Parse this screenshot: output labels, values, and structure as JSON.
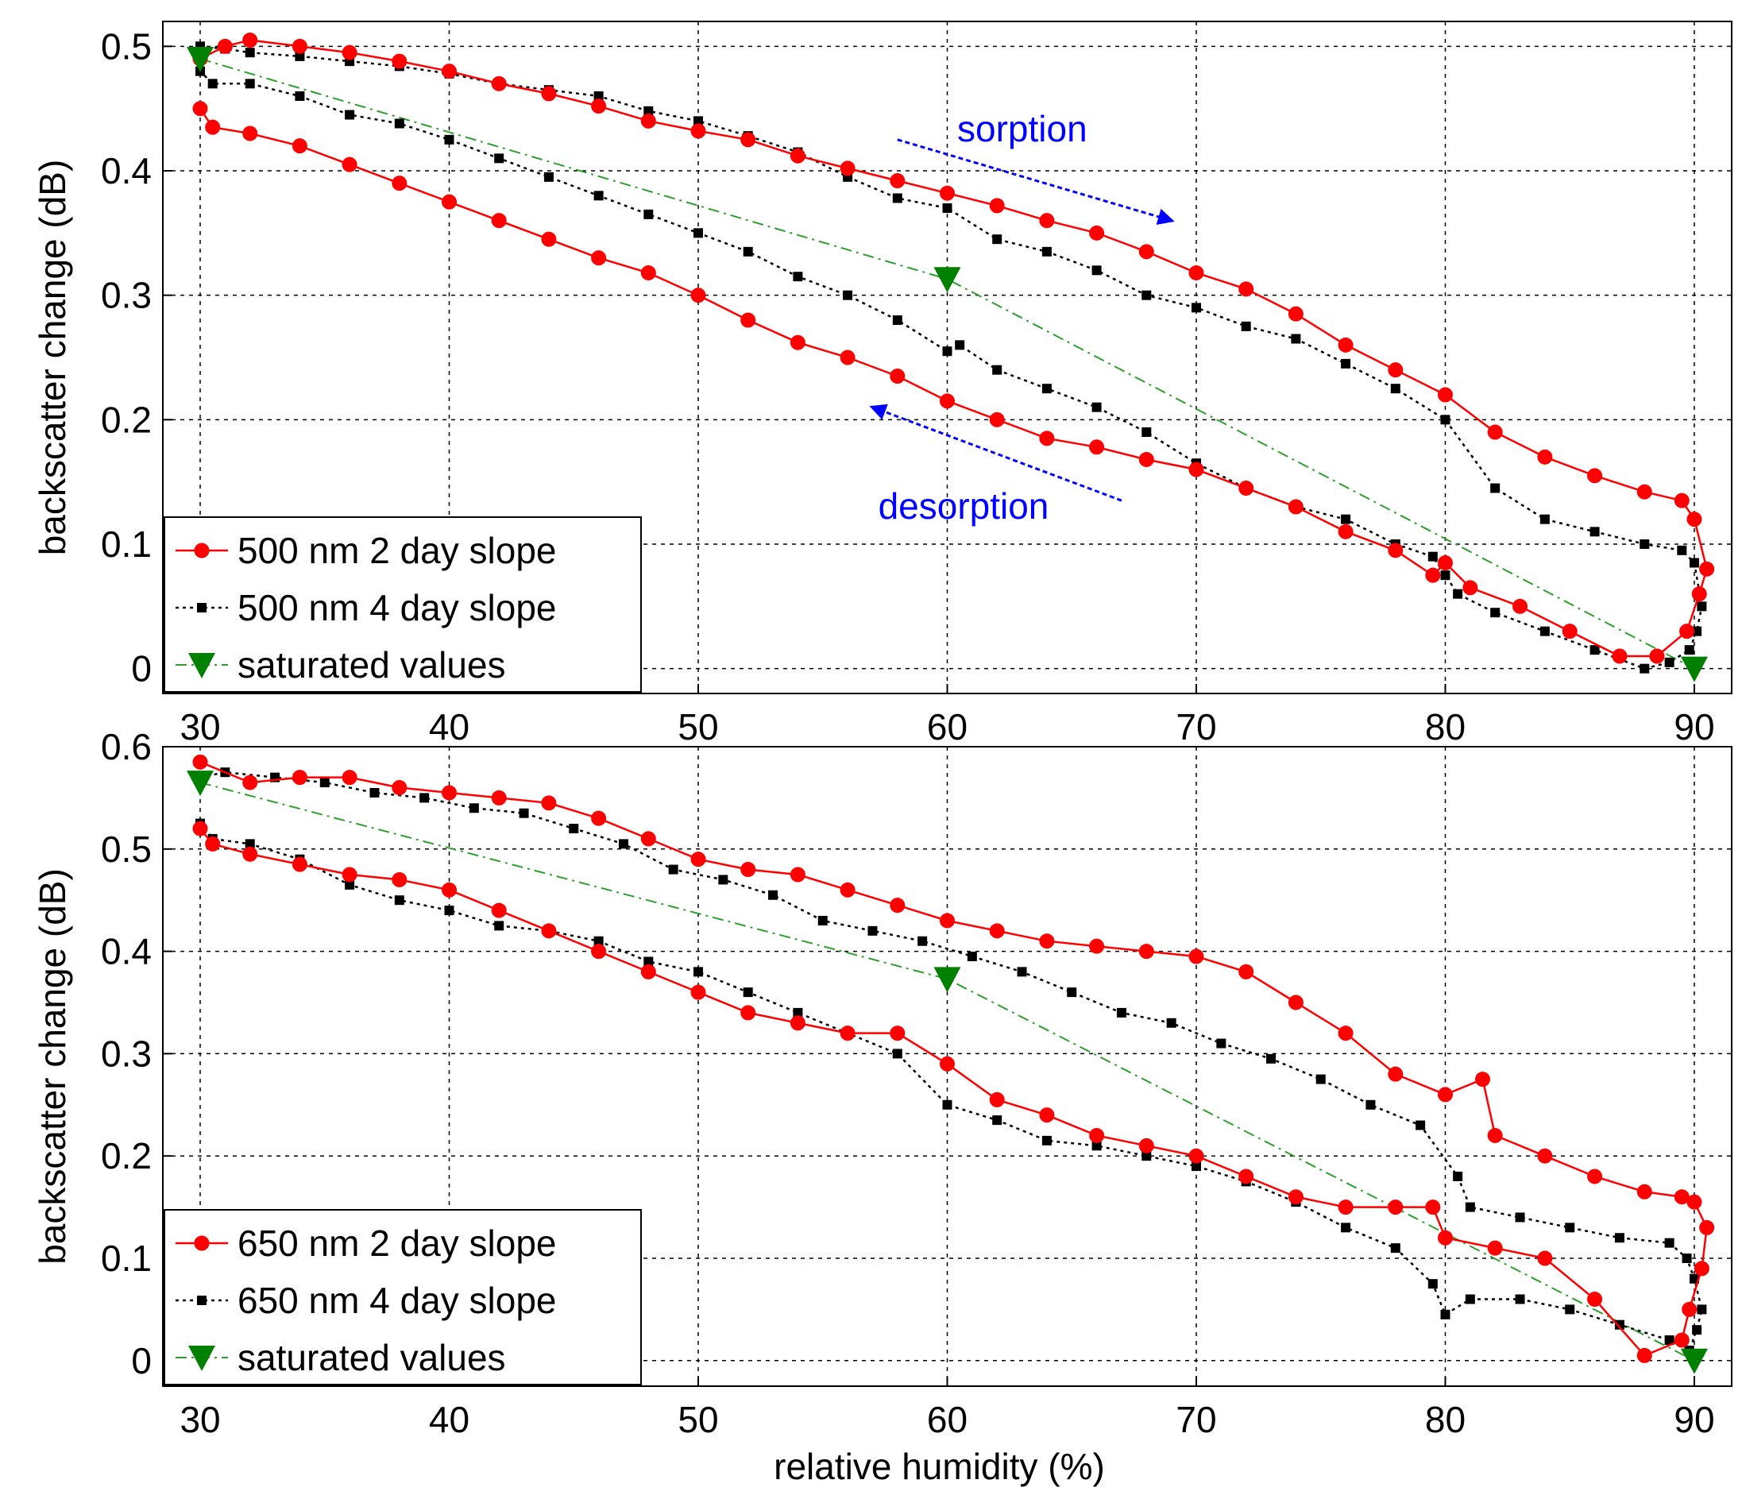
{
  "colors": {
    "red": "#ff0000",
    "black": "#000000",
    "green": "#008000",
    "green_line": "#2e9e2e",
    "blue": "#0000ff",
    "grid": "#000000"
  },
  "chart_data": [
    {
      "type": "line",
      "xlabel": "",
      "ylabel": "backscatter change (dB)",
      "xlim": [
        28.5,
        91.5
      ],
      "ylim": [
        -0.02,
        0.52
      ],
      "xticks": [
        "30",
        "40",
        "50",
        "60",
        "70",
        "80",
        "90"
      ],
      "yticks": [
        "0",
        "0.1",
        "0.2",
        "0.3",
        "0.4",
        "0.5"
      ],
      "grid": true,
      "legend_position": "bottom-left",
      "legend": [
        "500 nm 2 day slope",
        "500 nm 4 day slope",
        "saturated values"
      ],
      "annotations": [
        {
          "text": "sorption",
          "arrow_from": [
            58,
            0.425
          ],
          "arrow_to": [
            69,
            0.36
          ]
        },
        {
          "text": "desorption",
          "arrow_from": [
            67,
            0.135
          ],
          "arrow_to": [
            57,
            0.21
          ]
        }
      ],
      "series": [
        {
          "name": "500 nm 2 day slope",
          "style": "red-solid-circle",
          "x": [
            30,
            31,
            32,
            34,
            36,
            38,
            40,
            42,
            44,
            46,
            48,
            50,
            52,
            54,
            56,
            58,
            60,
            62,
            64,
            66,
            68,
            70,
            72,
            74,
            76,
            78,
            80,
            82,
            84,
            86,
            88,
            89.5,
            90,
            90.5,
            90.2,
            89.7,
            88.5,
            87,
            85,
            83,
            81,
            80,
            79.5,
            78,
            76,
            74,
            72,
            70,
            68,
            66,
            64,
            62,
            60,
            58,
            56,
            54,
            52,
            50,
            48,
            46,
            44,
            42,
            40,
            38,
            36,
            34,
            32,
            30.5,
            30
          ],
          "y": [
            0.49,
            0.5,
            0.505,
            0.5,
            0.495,
            0.488,
            0.48,
            0.47,
            0.462,
            0.452,
            0.44,
            0.432,
            0.425,
            0.412,
            0.402,
            0.392,
            0.382,
            0.372,
            0.36,
            0.35,
            0.335,
            0.318,
            0.305,
            0.285,
            0.26,
            0.24,
            0.22,
            0.19,
            0.17,
            0.155,
            0.142,
            0.135,
            0.12,
            0.08,
            0.06,
            0.03,
            0.01,
            0.01,
            0.03,
            0.05,
            0.065,
            0.085,
            0.075,
            0.095,
            0.11,
            0.13,
            0.145,
            0.16,
            0.168,
            0.178,
            0.185,
            0.2,
            0.215,
            0.235,
            0.25,
            0.262,
            0.28,
            0.3,
            0.318,
            0.33,
            0.345,
            0.36,
            0.375,
            0.39,
            0.405,
            0.42,
            0.43,
            0.435,
            0.45
          ]
        },
        {
          "name": "500 nm 4 day slope",
          "style": "black-dotted-square",
          "x": [
            30,
            31,
            32,
            34,
            36,
            38,
            40,
            42,
            44,
            46,
            48,
            50,
            52,
            54,
            56,
            58,
            60,
            62,
            64,
            66,
            68,
            70,
            72,
            74,
            76,
            78,
            80,
            82,
            84,
            86,
            88,
            89.5,
            90,
            90.3,
            90.1,
            89.8,
            89,
            88,
            86,
            84,
            82,
            80.5,
            80,
            79.5,
            78,
            76,
            74,
            72,
            70,
            68,
            66,
            64,
            62,
            60.5,
            60,
            58,
            56,
            54,
            52,
            50,
            48,
            46,
            44,
            42,
            40,
            38,
            36,
            34,
            32,
            30.5,
            30
          ],
          "y": [
            0.5,
            0.498,
            0.495,
            0.492,
            0.488,
            0.484,
            0.478,
            0.47,
            0.465,
            0.46,
            0.448,
            0.44,
            0.428,
            0.415,
            0.395,
            0.378,
            0.37,
            0.345,
            0.335,
            0.32,
            0.3,
            0.29,
            0.275,
            0.265,
            0.245,
            0.225,
            0.2,
            0.145,
            0.12,
            0.11,
            0.1,
            0.095,
            0.085,
            0.05,
            0.03,
            0.015,
            0.005,
            0.0,
            0.015,
            0.03,
            0.045,
            0.06,
            0.075,
            0.09,
            0.1,
            0.12,
            0.13,
            0.145,
            0.165,
            0.19,
            0.21,
            0.225,
            0.24,
            0.26,
            0.255,
            0.28,
            0.3,
            0.315,
            0.335,
            0.35,
            0.365,
            0.38,
            0.395,
            0.41,
            0.425,
            0.438,
            0.445,
            0.46,
            0.47,
            0.47,
            0.48
          ]
        },
        {
          "name": "saturated values",
          "style": "green-dashdot-triangle",
          "x": [
            30,
            60,
            90
          ],
          "y": [
            0.49,
            0.313,
            0.0
          ]
        }
      ]
    },
    {
      "type": "line",
      "xlabel": "relative humidity (%)",
      "ylabel": "backscatter change (dB)",
      "xlim": [
        28.5,
        91.5
      ],
      "ylim": [
        -0.025,
        0.6
      ],
      "xticks": [
        "30",
        "40",
        "50",
        "60",
        "70",
        "80",
        "90"
      ],
      "yticks": [
        "0",
        "0.1",
        "0.2",
        "0.3",
        "0.4",
        "0.5",
        "0.6"
      ],
      "grid": true,
      "legend_position": "bottom-left",
      "legend": [
        "650 nm 2 day slope",
        "650 nm 4 day slope",
        "saturated values"
      ],
      "series": [
        {
          "name": "650 nm 2 day slope",
          "style": "red-solid-circle",
          "x": [
            30,
            32,
            34,
            36,
            38,
            40,
            42,
            44,
            46,
            48,
            50,
            52,
            54,
            56,
            58,
            60,
            62,
            64,
            66,
            68,
            70,
            72,
            74,
            76,
            78,
            80,
            81.5,
            82,
            84,
            86,
            88,
            89.5,
            90,
            90.5,
            90.3,
            89.8,
            89.5,
            88,
            86,
            84,
            82,
            80,
            79.5,
            78,
            76,
            74,
            72,
            70,
            68,
            66,
            64,
            62,
            60,
            58,
            56,
            54,
            52,
            50,
            48,
            46,
            44,
            42,
            40,
            38,
            36,
            34,
            32,
            30.5,
            30
          ],
          "y": [
            0.585,
            0.565,
            0.57,
            0.57,
            0.56,
            0.555,
            0.55,
            0.545,
            0.53,
            0.51,
            0.49,
            0.48,
            0.475,
            0.46,
            0.445,
            0.43,
            0.42,
            0.41,
            0.405,
            0.4,
            0.395,
            0.38,
            0.35,
            0.32,
            0.28,
            0.26,
            0.275,
            0.22,
            0.2,
            0.18,
            0.165,
            0.16,
            0.155,
            0.13,
            0.09,
            0.05,
            0.02,
            0.005,
            0.06,
            0.1,
            0.11,
            0.12,
            0.15,
            0.15,
            0.15,
            0.16,
            0.18,
            0.2,
            0.21,
            0.22,
            0.24,
            0.255,
            0.29,
            0.32,
            0.32,
            0.33,
            0.34,
            0.36,
            0.38,
            0.4,
            0.42,
            0.44,
            0.46,
            0.47,
            0.475,
            0.485,
            0.495,
            0.505,
            0.52
          ]
        },
        {
          "name": "650 nm 4 day slope",
          "style": "black-dotted-square",
          "x": [
            30,
            31,
            33,
            35,
            37,
            39,
            41,
            43,
            45,
            47,
            49,
            51,
            53,
            55,
            57,
            59,
            61,
            63,
            65,
            67,
            69,
            71,
            73,
            75,
            77,
            79,
            80.5,
            81,
            83,
            85,
            87,
            89,
            89.7,
            90,
            90.3,
            90.1,
            89.8,
            89,
            87,
            85,
            83,
            81,
            80,
            79.5,
            78,
            76,
            74,
            72,
            70,
            68,
            66,
            64,
            62,
            60,
            58,
            56,
            54,
            52,
            50,
            48,
            46,
            44,
            42,
            40,
            38,
            36,
            34,
            32,
            30.5,
            30
          ],
          "y": [
            0.57,
            0.575,
            0.57,
            0.565,
            0.555,
            0.55,
            0.54,
            0.535,
            0.52,
            0.505,
            0.48,
            0.47,
            0.455,
            0.43,
            0.42,
            0.41,
            0.395,
            0.38,
            0.36,
            0.34,
            0.33,
            0.31,
            0.295,
            0.275,
            0.25,
            0.23,
            0.18,
            0.15,
            0.14,
            0.13,
            0.12,
            0.115,
            0.1,
            0.08,
            0.05,
            0.03,
            0.01,
            0.02,
            0.035,
            0.05,
            0.06,
            0.06,
            0.045,
            0.075,
            0.11,
            0.13,
            0.155,
            0.175,
            0.19,
            0.2,
            0.21,
            0.215,
            0.235,
            0.25,
            0.3,
            0.32,
            0.34,
            0.36,
            0.38,
            0.39,
            0.41,
            0.42,
            0.425,
            0.44,
            0.45,
            0.465,
            0.49,
            0.505,
            0.51,
            0.525
          ]
        },
        {
          "name": "saturated values",
          "style": "green-dashdot-triangle",
          "x": [
            30,
            60,
            90
          ],
          "y": [
            0.565,
            0.373,
            0.0
          ]
        }
      ]
    }
  ]
}
